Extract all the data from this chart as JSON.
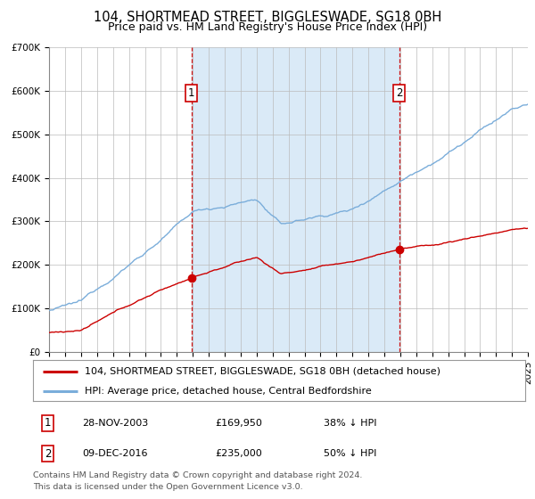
{
  "title": "104, SHORTMEAD STREET, BIGGLESWADE, SG18 0BH",
  "subtitle": "Price paid vs. HM Land Registry's House Price Index (HPI)",
  "hpi_label": "HPI: Average price, detached house, Central Bedfordshire",
  "price_label": "104, SHORTMEAD STREET, BIGGLESWADE, SG18 0BH (detached house)",
  "footnote1": "Contains HM Land Registry data © Crown copyright and database right 2024.",
  "footnote2": "This data is licensed under the Open Government Licence v3.0.",
  "purchase1_date": "28-NOV-2003",
  "purchase1_price": 169950,
  "purchase1_label": "£169,950",
  "purchase1_hpi_text": "38% ↓ HPI",
  "purchase1_year": 2003.9,
  "purchase2_date": "09-DEC-2016",
  "purchase2_price": 235000,
  "purchase2_label": "£235,000",
  "purchase2_hpi_text": "50% ↓ HPI",
  "purchase2_year": 2016.93,
  "ylim": [
    0,
    700000
  ],
  "yticks": [
    0,
    100000,
    200000,
    300000,
    400000,
    500000,
    600000,
    700000
  ],
  "ytick_labels": [
    "£0",
    "£100K",
    "£200K",
    "£300K",
    "£400K",
    "£500K",
    "£600K",
    "£700K"
  ],
  "xlim_start": 1995,
  "xlim_end": 2025,
  "hpi_color": "#7aadda",
  "price_color": "#cc0000",
  "bg_color": "#ffffff",
  "shaded_color": "#daeaf7",
  "grid_color": "#bbbbbb",
  "title_fontsize": 10.5,
  "subtitle_fontsize": 9,
  "tick_fontsize": 7.5,
  "legend_fontsize": 8,
  "footnote_fontsize": 6.8
}
